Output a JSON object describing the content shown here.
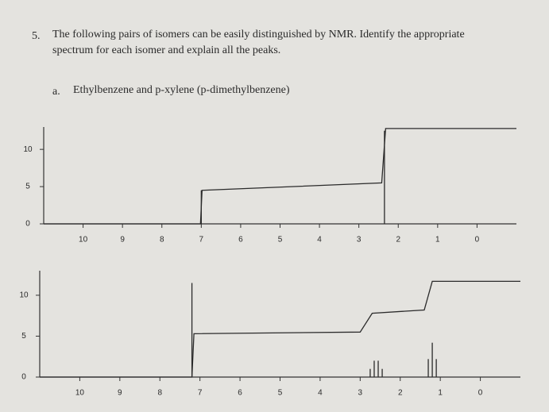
{
  "question": {
    "number": "5.",
    "text_line1": "The following pairs of isomers can be easily distinguished by NMR. Identify the appropriate",
    "text_line2": "spectrum for each isomer and explain all the peaks."
  },
  "part": {
    "label": "a.",
    "text": "Ethylbenzene and p-xylene (p-dimethylbenzene)"
  },
  "chart_data": [
    {
      "type": "line",
      "xlim": [
        11,
        -1
      ],
      "ylim": [
        0,
        13
      ],
      "xticks": [
        10,
        9,
        8,
        7,
        6,
        5,
        4,
        3,
        2,
        1,
        0
      ],
      "yticks": [
        0,
        5,
        10
      ],
      "series": [
        {
          "style": "step",
          "color": "#2b2b2b",
          "x": [
            11,
            7.02,
            6.98,
            2.42,
            2.32,
            -1
          ],
          "values": [
            0,
            0,
            4.5,
            5.5,
            12.8,
            12.8
          ]
        },
        {
          "style": "peaks",
          "color": "#2b2b2b",
          "x": [
            7.0,
            2.35
          ],
          "values": [
            4.5,
            12.5
          ]
        }
      ]
    },
    {
      "type": "line",
      "xlim": [
        11,
        -1
      ],
      "ylim": [
        0,
        13
      ],
      "xticks": [
        10,
        9,
        8,
        7,
        6,
        5,
        4,
        3,
        2,
        1,
        0
      ],
      "yticks": [
        0,
        5,
        10
      ],
      "series": [
        {
          "style": "step",
          "color": "#2b2b2b",
          "x": [
            11,
            7.2,
            7.15,
            3.0,
            2.7,
            1.4,
            1.2,
            -1
          ],
          "values": [
            0,
            0,
            5.3,
            5.5,
            7.8,
            8.2,
            11.7,
            11.7
          ]
        },
        {
          "style": "peaks",
          "color": "#2b2b2b",
          "x": [
            7.2,
            2.75,
            2.65,
            2.55,
            2.45,
            1.3,
            1.2,
            1.1
          ],
          "values": [
            11.5,
            1.0,
            2.0,
            2.0,
            1.0,
            2.2,
            4.2,
            2.2
          ]
        }
      ]
    }
  ]
}
